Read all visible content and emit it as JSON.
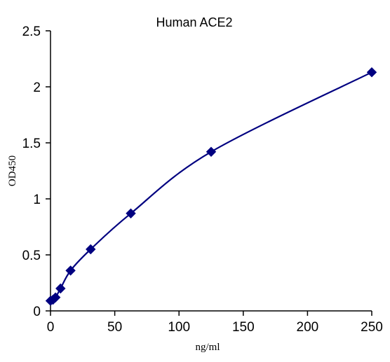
{
  "chart_data": {
    "type": "scatter",
    "title": "Human ACE2",
    "xlabel": "ng/ml",
    "ylabel": "OD450",
    "xlim": [
      0,
      250
    ],
    "ylim": [
      0,
      2.5
    ],
    "xticks": [
      0,
      50,
      100,
      150,
      200,
      250
    ],
    "yticks": [
      0,
      0.5,
      1,
      1.5,
      2,
      2.5
    ],
    "ytick_labels": [
      "0",
      "0.5",
      "1",
      "1.5",
      "2",
      "2.5"
    ],
    "grid": false,
    "legend": "none",
    "series": [
      {
        "marker": "diamond",
        "line": "smooth",
        "color": "#000080",
        "x": [
          0,
          1.95,
          3.9,
          7.8,
          15.6,
          31.25,
          62.5,
          125,
          250
        ],
        "y": [
          0.09,
          0.1,
          0.12,
          0.2,
          0.36,
          0.55,
          0.87,
          1.42,
          2.13
        ]
      }
    ]
  }
}
